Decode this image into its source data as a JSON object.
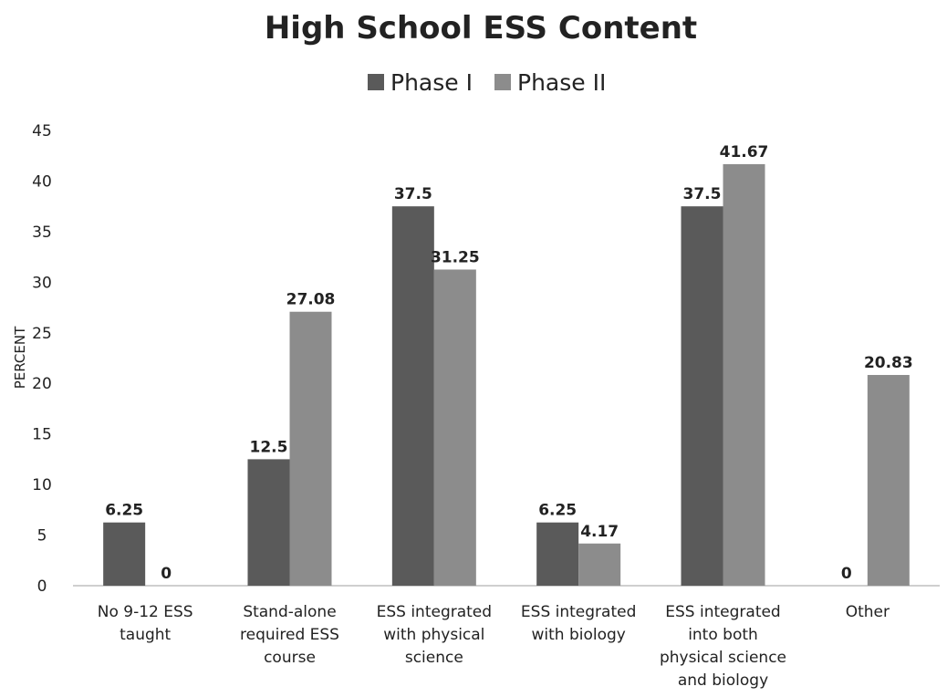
{
  "chart_data": {
    "type": "bar",
    "title": "High School ESS Content",
    "ylabel": "PERCENT",
    "xlabel": "",
    "ylim": [
      0,
      45
    ],
    "yticks": [
      0,
      5,
      10,
      15,
      20,
      25,
      30,
      35,
      40,
      45
    ],
    "grid": false,
    "legend_position": "top-center",
    "categories": [
      [
        "No 9-12 ESS",
        "taught"
      ],
      [
        "Stand-alone",
        "required ESS",
        "course"
      ],
      [
        "ESS integrated",
        "with physical",
        "science"
      ],
      [
        "ESS integrated",
        "with biology"
      ],
      [
        "ESS integrated",
        "into both",
        "physical science",
        "and biology"
      ],
      [
        "Other"
      ]
    ],
    "series": [
      {
        "name": "Phase I",
        "color": "#5a5a5a",
        "values": [
          6.25,
          12.5,
          37.5,
          6.25,
          37.5,
          0
        ],
        "labels": [
          "6.25",
          "12.5",
          "37.5",
          "6.25",
          "37.5",
          "0"
        ]
      },
      {
        "name": "Phase II",
        "color": "#8c8c8c",
        "values": [
          0,
          27.08,
          31.25,
          4.17,
          41.67,
          20.83
        ],
        "labels": [
          "0",
          "27.08",
          "31.25",
          "4.17",
          "41.67",
          "20.83"
        ]
      }
    ]
  }
}
